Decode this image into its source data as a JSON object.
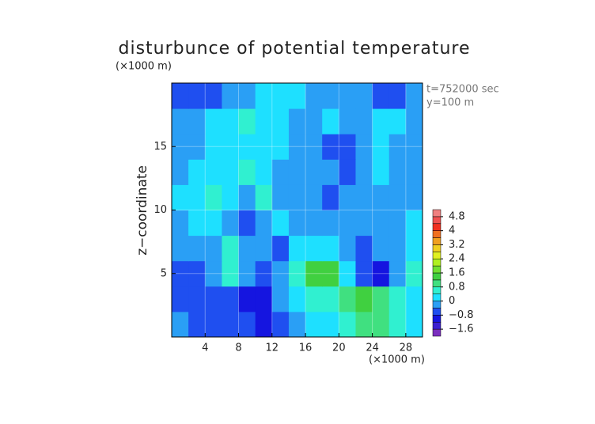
{
  "chart_data": {
    "type": "contour",
    "title": "disturbunce of potential temperature",
    "x_unit": "(×1000 m)",
    "y_unit": "(×1000 m)",
    "ylabel": "z−coordinate",
    "annotations": [
      "t=752000 sec",
      "y=100 m"
    ],
    "xlim": [
      0,
      30
    ],
    "ylim": [
      0,
      20
    ],
    "xticks": [
      4,
      8,
      12,
      16,
      20,
      24,
      28
    ],
    "yticks": [
      5,
      10,
      15
    ],
    "grid": true,
    "z": [
      [
        -0.4,
        -0.6,
        -0.8,
        -0.8,
        -0.8,
        -1.0,
        -0.6,
        -0.2,
        0,
        0.2,
        0.8,
        1.0,
        1.0,
        0.4,
        0
      ],
      [
        -0.6,
        -0.8,
        -0.6,
        -0.6,
        -1.0,
        -1.2,
        -0.4,
        0.2,
        0.4,
        0.4,
        1.0,
        1.2,
        1.0,
        0.6,
        0.2
      ],
      [
        -0.6,
        -0.8,
        -0.4,
        0.6,
        -0.4,
        -0.6,
        -0.4,
        0.4,
        1.2,
        1.2,
        0.2,
        -0.8,
        -1.0,
        -0.4,
        0.6
      ],
      [
        -0.2,
        -0.4,
        -0.2,
        0.4,
        -0.4,
        -0.2,
        -0.6,
        0,
        0.2,
        0,
        -0.2,
        -0.6,
        -0.4,
        -0.2,
        0.2
      ],
      [
        -0.2,
        0,
        0.2,
        -0.2,
        -0.6,
        -0.2,
        0,
        -0.2,
        -0.2,
        -0.4,
        -0.2,
        -0.2,
        -0.2,
        -0.4,
        0
      ],
      [
        0,
        0.2,
        0.4,
        0,
        -0.2,
        0.4,
        -0.2,
        -0.4,
        -0.4,
        -0.6,
        -0.2,
        -0.4,
        -0.2,
        -0.4,
        -0.2
      ],
      [
        -0.2,
        0,
        0.2,
        0.2,
        0.4,
        0.2,
        -0.2,
        -0.4,
        -0.4,
        -0.4,
        -0.6,
        -0.2,
        0,
        -0.4,
        -0.4
      ],
      [
        -0.2,
        -0.2,
        0,
        0.2,
        0.2,
        0.2,
        0,
        -0.4,
        -0.4,
        -0.6,
        -0.8,
        -0.2,
        0.2,
        -0.2,
        -0.4
      ],
      [
        -0.4,
        -0.2,
        0,
        0.2,
        0.4,
        0.2,
        0.2,
        -0.2,
        -0.4,
        0,
        -0.4,
        -0.4,
        0,
        0.2,
        -0.2
      ],
      [
        -0.8,
        -0.8,
        -0.6,
        -0.4,
        -0.2,
        0,
        0.2,
        0,
        -0.4,
        -0.2,
        -0.4,
        -0.4,
        -0.6,
        -0.6,
        -0.4
      ]
    ],
    "colorbar": {
      "lim": [
        -2,
        5.2
      ],
      "colors": [
        "#7b2fbf",
        "#3b1fd0",
        "#1515e0",
        "#1f4ff0",
        "#2a9ff5",
        "#1ee0ff",
        "#30f0d0",
        "#40e080",
        "#40d040",
        "#70e030",
        "#b0f020",
        "#e0f020",
        "#f0d020",
        "#f0a020",
        "#f07020",
        "#f03020",
        "#f05050",
        "#f08080"
      ],
      "ticks": [
        {
          "value": -1.6,
          "label": "−1.6"
        },
        {
          "value": -0.8,
          "label": "−0.8"
        },
        0,
        0.8,
        1.6,
        2.4,
        3.2,
        4,
        4.8
      ]
    }
  }
}
